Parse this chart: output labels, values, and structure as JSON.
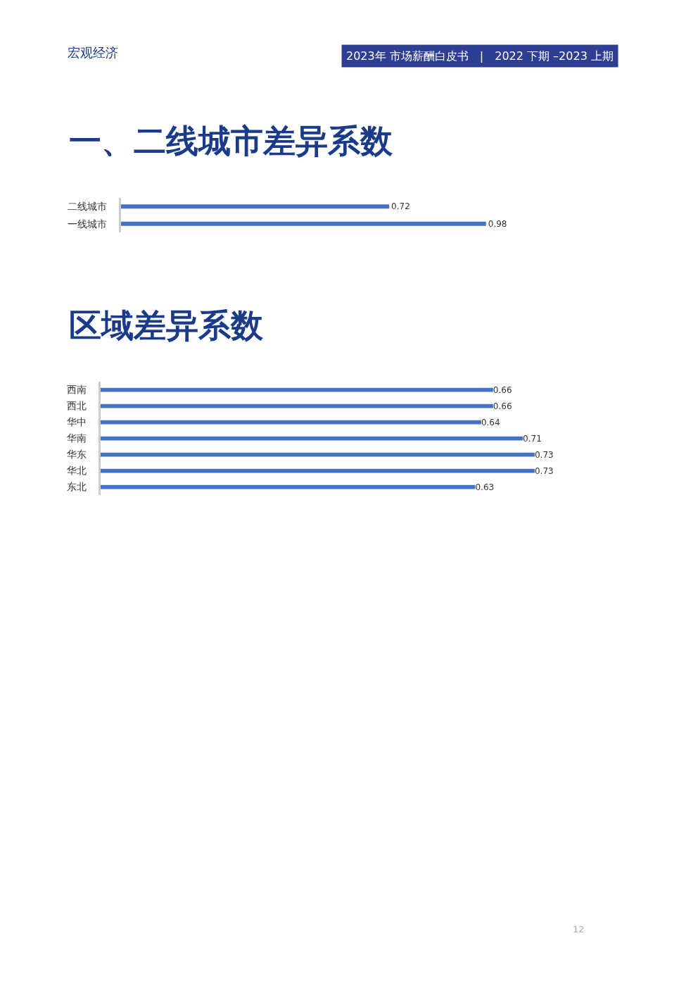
{
  "chart_data": [
    {
      "type": "bar",
      "orientation": "horizontal",
      "title": "一、二线城市差异系数",
      "categories": [
        "二线城市",
        "一线城市"
      ],
      "values": [
        0.72,
        0.98
      ],
      "color": "#4472c4",
      "data_labels": true,
      "tick_labels": "y",
      "annotations": [
        "宏观经济",
        "2023年 市场薪酬白皮书　|　2022 下期 –2023 上期",
        "12"
      ]
    },
    {
      "type": "bar",
      "orientation": "horizontal",
      "title": "区域差异系数",
      "categories": [
        "西南",
        "西北",
        "华中",
        "华南",
        "华东",
        "华北",
        "东北"
      ],
      "values": [
        0.66,
        0.66,
        0.64,
        0.71,
        0.73,
        0.73,
        0.63
      ],
      "color": "#4472c4",
      "data_labels": true,
      "tick_labels": "y"
    }
  ]
}
